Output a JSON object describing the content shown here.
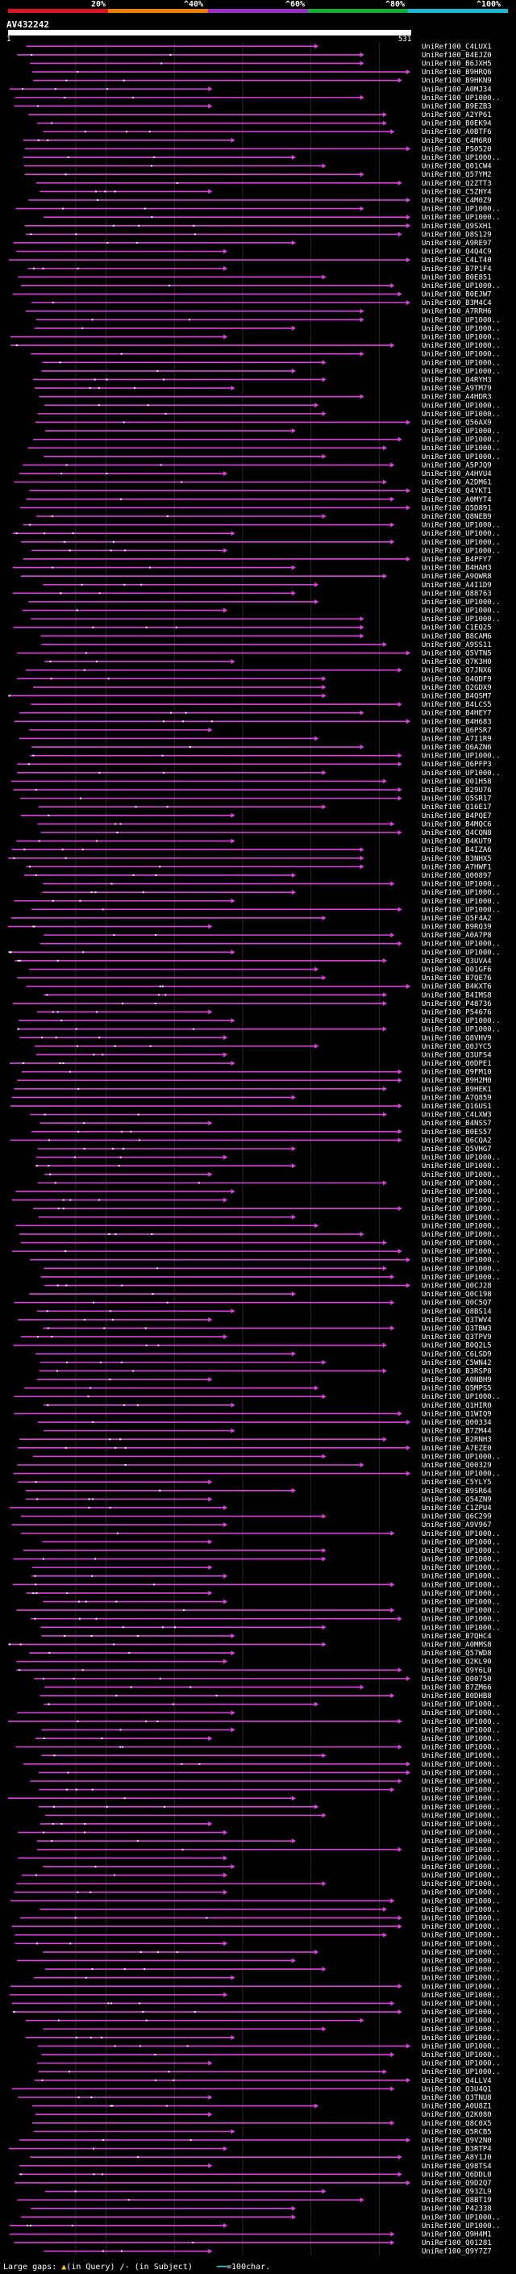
{
  "scale": {
    "labels": [
      "20%",
      "^40%",
      "^60%",
      "^80%",
      "^100%"
    ]
  },
  "legend": {
    "gaps_label": "Large gaps:",
    "query_glyph": "▲",
    "query_text": "(in Query)",
    "subject_text": "/- (in Subject)",
    "scale_glyph": "━━",
    "scale_text": "=100char."
  },
  "colors": {
    "hit": "#e040e0",
    "grid": "#2a2a2a",
    "gap": "#ffd000"
  },
  "chart_data": {
    "type": "alignment-hits",
    "title": "AV432242",
    "query_start": 1,
    "query_end": 531,
    "hit_count": 304,
    "hit_label_prefix": "UniRef100_",
    "visible_hit_ids": [
      "C4LUX1",
      "B4EJZ0",
      "B6JXH5",
      "B9HRQ6",
      "B9HKN9",
      "A0MJ34",
      "UP1000..",
      "B9EZB3",
      "A2YP61",
      "B0EK94",
      "A0BTF6",
      "C4M6R0",
      "P50520",
      "UP1000..",
      "Q01CW4",
      "Q57YM2",
      "Q2ZTT3",
      "C5ZHY4",
      "C4M0Z9",
      "UP1000..",
      "UP1000..",
      "Q9SXH1",
      "D8S129",
      "A9RE97",
      "Q4Q4C9",
      "C4LT40",
      "B7P1F4",
      "B0E851",
      "UP1000..",
      "B0EJW7",
      "B3M4C4",
      "A7RRH6",
      "UP1000..",
      "UP1000..",
      "UP1000..",
      "UP1000..",
      "UP1000..",
      "UP1000..",
      "UP1000..",
      "Q4RYH3",
      "A9TM79",
      "A4HDR3",
      "UP1000..",
      "UP1000..",
      "Q56AX9",
      "UP1000..",
      "UP1000..",
      "UP1000..",
      "UP1000..",
      "A5PJQ9",
      "A4HVU4",
      "A2DM61",
      "Q4YKT1",
      "A0MYT4",
      "Q5D891",
      "Q8NEB9",
      "UP1000..",
      "UP1000..",
      "UP1000..",
      "UP1000..",
      "B4PFY7",
      "B4HAH3",
      "A9QWR8",
      "A4I1D9",
      "Q88763",
      "UP1000..",
      "UP1000..",
      "UP1000..",
      "C1EQ25",
      "B8CAM6",
      "A9SS11",
      "Q5VTN5",
      "Q7K3H0",
      "Q7JNX6",
      "Q4QDF9",
      "Q2GDX9",
      "B4QSM7",
      "B4LCS5",
      "B4HEY7",
      "B4H683",
      "Q6PSR7",
      "A7I1R9",
      "Q6AZN6",
      "UP1000..",
      "Q6PFP3",
      "UP1000..",
      "Q01H58",
      "B29U76",
      "Q5SR17",
      "Q16E17",
      "B4PQE7",
      "B4MQC6",
      "Q4CQN8",
      "B4KUT9",
      "B4IZA6",
      "B3NHX5",
      "A7HWF1",
      "Q00897",
      "UP1000..",
      "UP1000..",
      "UP1000..",
      "UP1000..",
      "Q5F4A2",
      "B9RQ39",
      "A0A7P8",
      "UP1000..",
      "UP1000..",
      "Q3UVA4",
      "Q01GF6",
      "B7QE76",
      "B4KXT6",
      "B4IMS8",
      "P48736",
      "P54676",
      "UP1000..",
      "UP1000..",
      "Q8VHV9",
      "Q0JYC5",
      "Q3UFS4",
      "Q0DPE1",
      "Q9FM10",
      "B9H2M0",
      "B9HEK1",
      "A7Q859",
      "Q16US1",
      "C4LXW3",
      "B4NSS7",
      "B0ES57",
      "Q6CQA2",
      "Q5VHG7",
      "UP1000..",
      "UP1000..",
      "UP1000..",
      "UP1000..",
      "UP1000..",
      "UP1000..",
      "UP1000..",
      "UP1000..",
      "UP1000..",
      "UP1000..",
      "UP1000..",
      "UP1000..",
      "UP1000..",
      "UP1000..",
      "UP1000..",
      "Q0CJ28",
      "Q0C198",
      "Q0C5Q7",
      "Q8BS14",
      "Q3TWV4",
      "Q3TBW3",
      "Q3TPV9",
      "B0Q2L5",
      "C6LSD9",
      "C5WN42",
      "B3RSP8",
      "A0NBH9",
      "Q5MPS5",
      "UP1000..",
      "Q1HIR0",
      "Q1WIQ9",
      "Q00334",
      "B7ZM44",
      "B2RNH3",
      "A7EZE0",
      "UP1000..",
      "Q00329",
      "UP1000..",
      "C5YLY5",
      "B9SR64",
      "Q54ZN9",
      "C1ZPU4",
      "Q6C299",
      "A9V967",
      "UP1000..",
      "UP1000..",
      "UP1000..",
      "UP1000..",
      "UP1000..",
      "UP1000..",
      "UP1000..",
      "UP1000..",
      "UP1000..",
      "UP1000..",
      "UP1000..",
      "UP1000..",
      "B7QHC4",
      "A0MMS8",
      "Q57WD8",
      "Q2KL90",
      "Q9Y6L0",
      "Q00750",
      "B7ZM66",
      "B0DHB8",
      "UP1000..",
      "UP1000..",
      "UP1000..",
      "UP1000..",
      "UP1000..",
      "UP1000..",
      "UP1000..",
      "UP1000..",
      "UP1000..",
      "UP1000..",
      "UP1000..",
      "UP1000..",
      "UP1000..",
      "UP1000..",
      "UP1000..",
      "UP1000..",
      "UP1000..",
      "UP1000..",
      "UP1000..",
      "UP1000..",
      "UP1000..",
      "UP1000..",
      "UP1000..",
      "UP1000..",
      "UP1000..",
      "UP1000..",
      "UP1000..",
      "UP1000..",
      "UP1000..",
      "UP1000..",
      "UP1000..",
      "UP1000..",
      "UP1000..",
      "UP1000..",
      "UP1000..",
      "UP1000..",
      "UP1000..",
      "UP1000..",
      "UP1000..",
      "UP1000..",
      "UP1000..",
      "UP1000..",
      "UP1000..",
      "UP1000..",
      "Q4LLV4",
      "Q3U4Q1",
      "Q3TNU8",
      "A0U8Z1",
      "Q2K080",
      "Q8C0X5",
      "Q5RCB5",
      "Q9V2N0",
      "B3RTP4",
      "A8Y1J0",
      "Q98TS4",
      "Q6DDL0",
      "Q9D2Q7",
      "Q93ZL9",
      "Q8BT19",
      "P42338",
      "UP1000..",
      "UP1000..",
      "Q9H4M1",
      "Q01281",
      "Q9Y7Z7"
    ]
  }
}
